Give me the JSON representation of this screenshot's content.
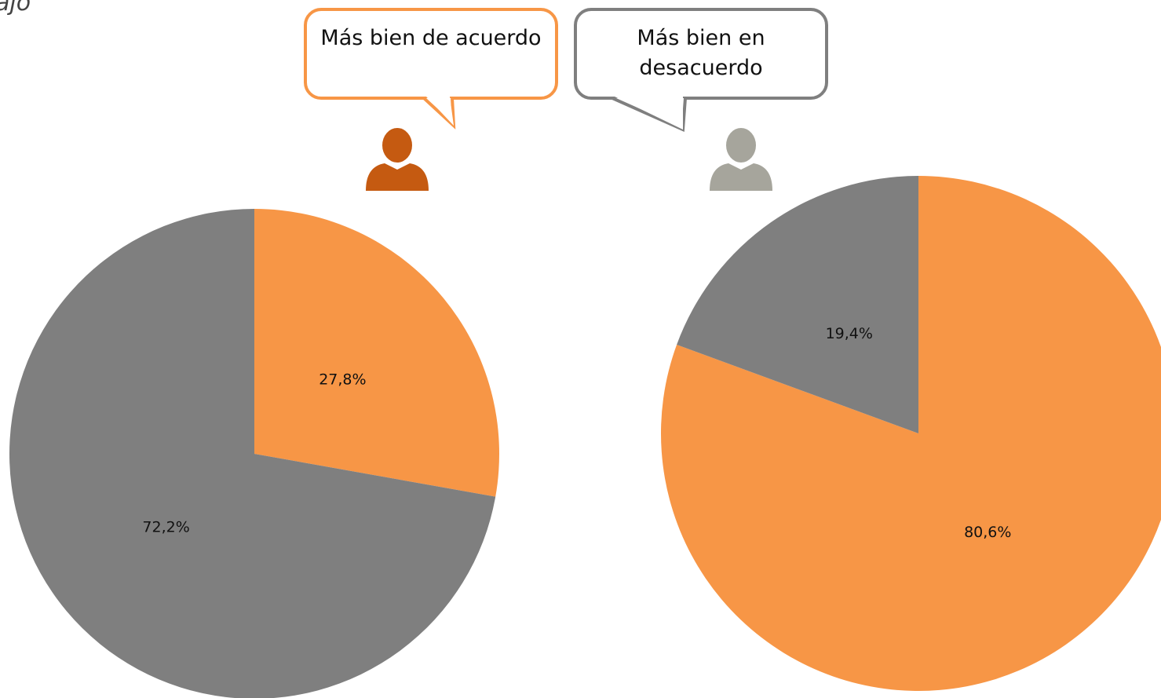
{
  "title": "ajo",
  "legend": [
    {
      "label": "Más bien de acuerdo",
      "color": "#f79646"
    },
    {
      "label": "Más bien en desacuerdo",
      "color": "#7f7f7f"
    }
  ],
  "chart_data": [
    {
      "type": "pie",
      "values": [
        27.8,
        72.2
      ],
      "value_labels": [
        "27,8%",
        "72,2%"
      ],
      "colors": [
        "#f79646",
        "#7f7f7f"
      ]
    },
    {
      "type": "pie",
      "values": [
        80.6,
        19.4
      ],
      "value_labels": [
        "80,6%",
        "19,4%"
      ],
      "colors": [
        "#f79646",
        "#7f7f7f"
      ]
    }
  ]
}
